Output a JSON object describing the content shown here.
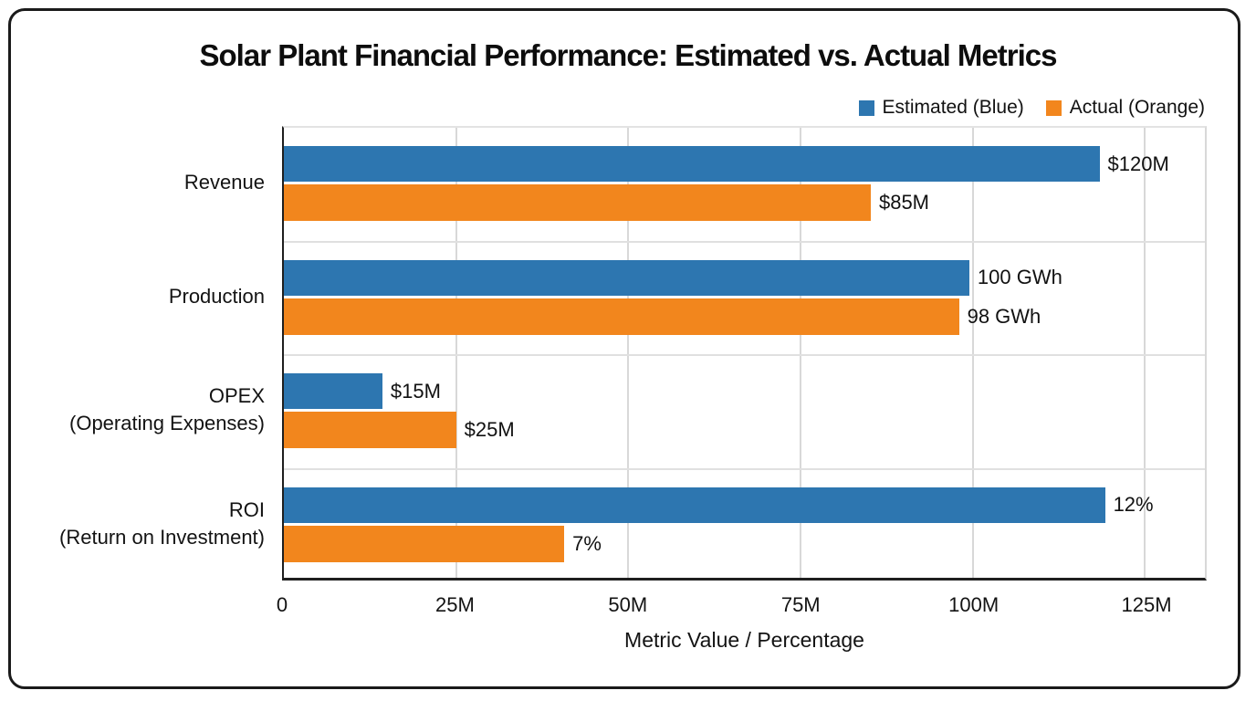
{
  "title": "Solar Plant Financial Performance: Estimated vs. Actual Metrics",
  "legend": {
    "items": [
      {
        "label": "Estimated (Blue)",
        "color": "#2d76b0"
      },
      {
        "label": "Actual (Orange)",
        "color": "#f2861d"
      }
    ]
  },
  "colors": {
    "estimated": "#2d76b0",
    "actual": "#f2861d",
    "grid": "#d8d8d8",
    "axis": "#1f1f1f",
    "text": "#111111",
    "border": "#1a1a1a"
  },
  "chart_data": {
    "type": "bar",
    "orientation": "horizontal",
    "title": "Solar Plant Financial Performance: Estimated vs. Actual Metrics",
    "xlabel": "Metric Value / Percentage",
    "categories": [
      [
        "Revenue"
      ],
      [
        "Production"
      ],
      [
        "OPEX",
        "(Operating Expenses)"
      ],
      [
        "ROI",
        "(Return on Investment)"
      ]
    ],
    "series": [
      {
        "name": "Estimated (Blue)",
        "color": "#2d76b0",
        "labels": [
          "$120M",
          "100 GWh",
          "$15M",
          "12%"
        ],
        "values": [
          120,
          100,
          15,
          12
        ],
        "plotted_units": [
          118.4,
          99.5,
          14.3,
          119.2
        ]
      },
      {
        "name": "Actual (Orange)",
        "color": "#f2861d",
        "labels": [
          "$85M",
          "98 GWh",
          "$25M",
          "7%"
        ],
        "values": [
          85,
          98,
          25,
          7
        ],
        "plotted_units": [
          85.2,
          98,
          25,
          40.7
        ]
      }
    ],
    "x_ticks": [
      "0",
      "25M",
      "50M",
      "75M",
      "100M",
      "125M"
    ],
    "x_tick_units": [
      0,
      25,
      50,
      75,
      100,
      125
    ],
    "xmax_units": 133.7,
    "grid": true,
    "legend_position": "top-right"
  }
}
